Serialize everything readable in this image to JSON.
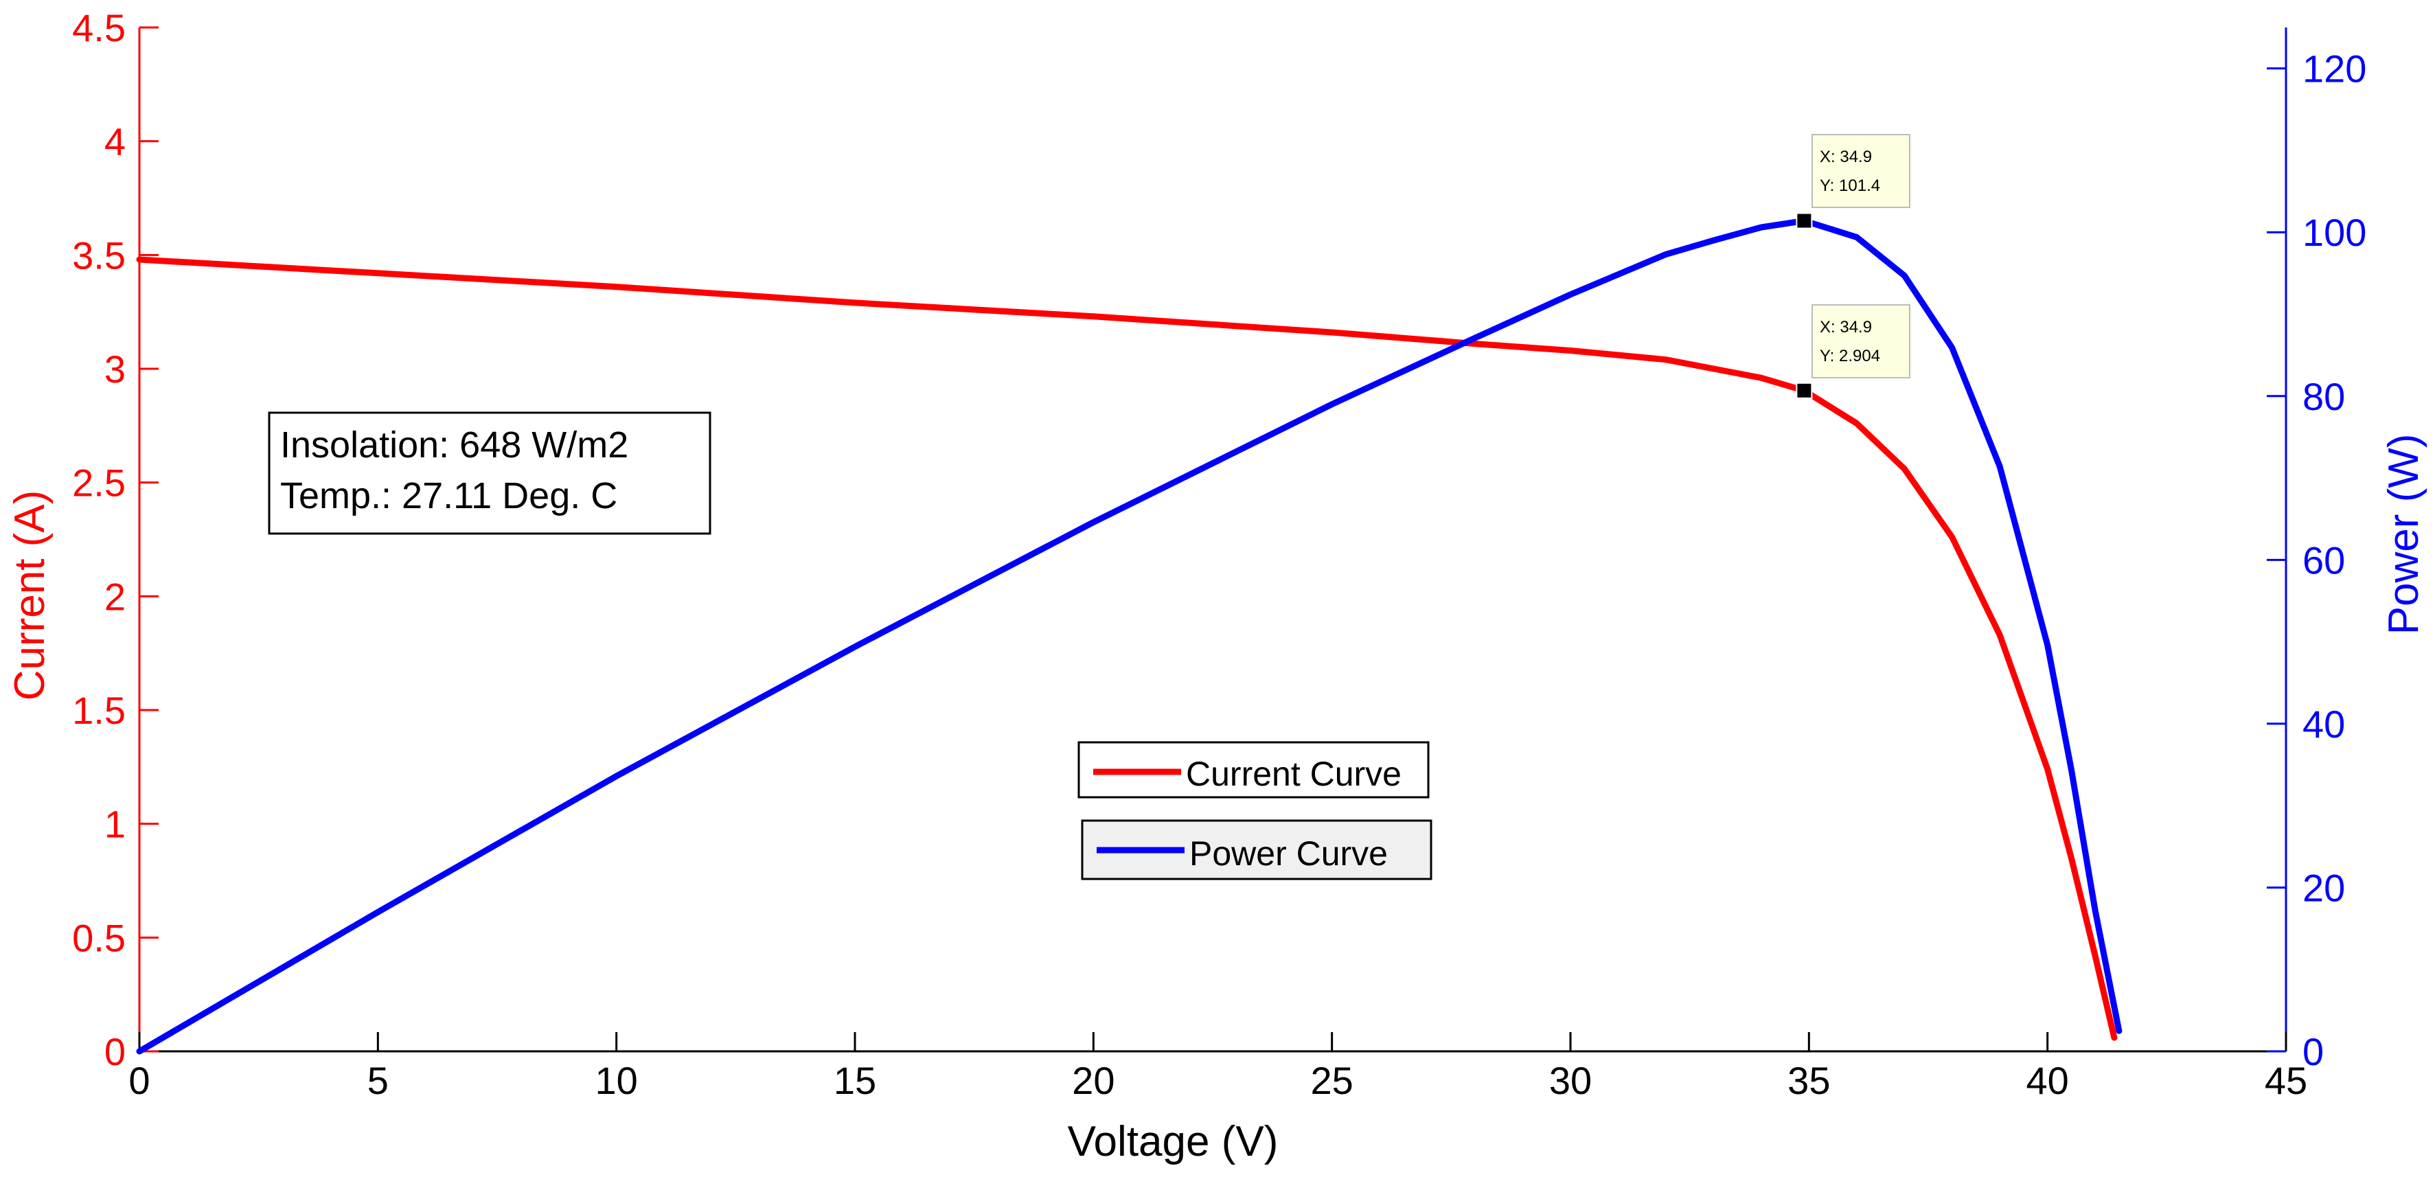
{
  "colors": {
    "current": "#ff0000",
    "power": "#0000ff",
    "axis_x": "#000000",
    "tip_bg": "#ffffe1"
  },
  "chart_data": {
    "type": "line",
    "xlabel": "Voltage (V)",
    "ylabel_left": "Current (A)",
    "ylabel_right": "Power (W)",
    "xlim": [
      0,
      45
    ],
    "ylim_left": [
      0,
      4.5
    ],
    "ylim_right": [
      0,
      125
    ],
    "x_ticks": [
      "0",
      "5",
      "10",
      "15",
      "20",
      "25",
      "30",
      "35",
      "40",
      "45"
    ],
    "y_left_ticks": [
      "0",
      "0.5",
      "1",
      "1.5",
      "2",
      "2.5",
      "3",
      "3.5",
      "4",
      "4.5"
    ],
    "y_right_ticks": [
      "0",
      "20",
      "40",
      "60",
      "80",
      "100",
      "120"
    ],
    "grid": false,
    "series": [
      {
        "name": "Current Curve",
        "axis": "left",
        "x": [
          0,
          5,
          10,
          15,
          20,
          25,
          28,
          30,
          32,
          33,
          34,
          34.9,
          36,
          37,
          38,
          39,
          40,
          40.5,
          41,
          41.4
        ],
        "values": [
          3.48,
          3.42,
          3.36,
          3.29,
          3.23,
          3.16,
          3.11,
          3.08,
          3.04,
          3.0,
          2.96,
          2.904,
          2.76,
          2.56,
          2.26,
          1.83,
          1.24,
          0.85,
          0.42,
          0.06
        ]
      },
      {
        "name": "Power Curve",
        "axis": "right",
        "x": [
          0,
          5,
          10,
          15,
          20,
          25,
          28,
          30,
          32,
          33,
          34,
          34.9,
          36,
          37,
          38,
          39,
          40,
          40.5,
          41,
          41.5
        ],
        "values": [
          0,
          17,
          33.6,
          49.4,
          64.6,
          79,
          87.1,
          92.4,
          97.3,
          99.0,
          100.6,
          101.4,
          99.4,
          94.7,
          85.9,
          71.4,
          49.6,
          34.4,
          17.2,
          2.5
        ]
      }
    ],
    "annotation_box": {
      "line1": "Insolation: 648 W/m2",
      "line2": "Temp.: 27.11 Deg. C"
    },
    "datatips": [
      {
        "axis": "right",
        "x": 34.9,
        "y": 101.4,
        "line1": "X: 34.9",
        "line2": "Y: 101.4"
      },
      {
        "axis": "left",
        "x": 34.9,
        "y": 2.904,
        "line1": "X: 34.9",
        "line2": "Y: 2.904"
      }
    ],
    "legend": [
      "Current Curve",
      "Power Curve"
    ],
    "legend_position": "center"
  }
}
